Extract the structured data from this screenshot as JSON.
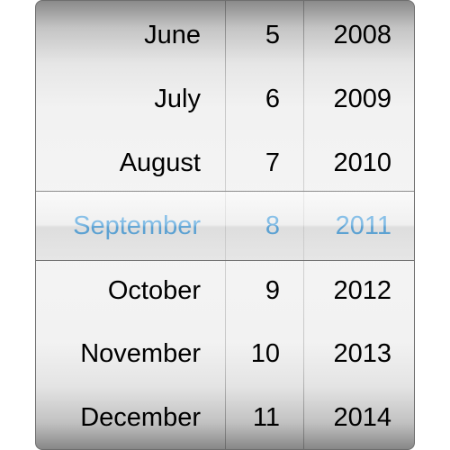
{
  "picker": {
    "months": [
      "June",
      "July",
      "August",
      "September",
      "October",
      "November",
      "December"
    ],
    "days": [
      "5",
      "6",
      "7",
      "8",
      "9",
      "10",
      "11"
    ],
    "years": [
      "2008",
      "2009",
      "2010",
      "2011",
      "2012",
      "2013",
      "2014"
    ],
    "selected": {
      "month": "September",
      "day": "8",
      "year": "2011"
    }
  },
  "colors": {
    "selected_text": "#2b95e0",
    "normal_text": "#000000"
  }
}
